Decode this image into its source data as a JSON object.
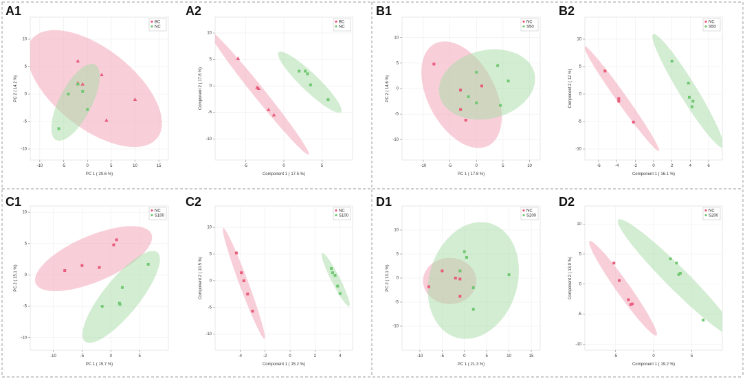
{
  "colors": {
    "nc": "#e85c7c",
    "ncFill": "#f2a0b4",
    "trt": "#72c872",
    "trtFill": "#a8dca8",
    "divider": "#999999"
  },
  "chart_data": [
    {
      "id": "A1",
      "letter": "A1",
      "type": "scatter",
      "xlabel": "PC 1 ( 20.6 %)",
      "ylabel": "PC 2 ( 14.2 %)",
      "xlim": [
        -12,
        17
      ],
      "ylim": [
        -12,
        14
      ],
      "xticks": [
        -10,
        -5,
        0,
        5,
        10,
        15
      ],
      "yticks": [
        -10,
        -5,
        0,
        5,
        10
      ],
      "series": [
        {
          "name": "BC",
          "color": "#e85c7c",
          "marker": "triangle",
          "points": [
            [
              -2,
              6
            ],
            [
              -2,
              2
            ],
            [
              3,
              3.5
            ],
            [
              4,
              -4.8
            ],
            [
              10,
              -1
            ],
            [
              -1,
              1.8
            ]
          ],
          "ellipse": {
            "cx": 1.5,
            "cy": 1,
            "rx": 16,
            "ry": 7.6,
            "angle": -32
          }
        },
        {
          "name": "NC",
          "color": "#72c872",
          "marker": "square",
          "points": [
            [
              -6,
              -6.3
            ],
            [
              -4,
              0
            ],
            [
              -1,
              0.5
            ],
            [
              0,
              -2.8
            ],
            [
              -2,
              1.8
            ]
          ],
          "ellipse": {
            "cx": -2.5,
            "cy": -1.5,
            "rx": 8,
            "ry": 3.3,
            "angle": 58
          }
        }
      ]
    },
    {
      "id": "A2",
      "letter": "A2",
      "type": "scatter",
      "xlabel": "Component 1 ( 17.5 %)",
      "ylabel": "Component 2 ( 17.8 %)",
      "xlim": [
        -9,
        9
      ],
      "ylim": [
        -14,
        13
      ],
      "xticks": [
        -5,
        0,
        5
      ],
      "yticks": [
        -10,
        -5,
        0,
        5,
        10
      ],
      "series": [
        {
          "name": "BC",
          "color": "#e85c7c",
          "marker": "triangle",
          "points": [
            [
              -6,
              5.2
            ],
            [
              -3.5,
              -0.3
            ],
            [
              -3.3,
              -0.5
            ],
            [
              -2,
              -4.5
            ],
            [
              -1.3,
              -5.5
            ]
          ],
          "ellipse": {
            "cx": -3.3,
            "cy": -1.2,
            "rx": 13.5,
            "ry": 0.85,
            "angle": -61
          }
        },
        {
          "name": "NC",
          "color": "#72c872",
          "marker": "square",
          "points": [
            [
              2,
              2.8
            ],
            [
              2.8,
              2.8
            ],
            [
              3.5,
              0.2
            ],
            [
              5.8,
              -2.6
            ],
            [
              3.1,
              2.3
            ]
          ],
          "ellipse": {
            "cx": 3.4,
            "cy": 0.7,
            "rx": 7,
            "ry": 1.35,
            "angle": -55
          }
        }
      ]
    },
    {
      "id": "B1",
      "letter": "B1",
      "type": "scatter",
      "xlabel": "PC 1 ( 17.8 %)",
      "ylabel": "PC 2 ( 14.6 %)",
      "xlim": [
        -14,
        12
      ],
      "ylim": [
        -14,
        14
      ],
      "xticks": [
        -10,
        -5,
        0,
        5,
        10
      ],
      "yticks": [
        -10,
        -5,
        0,
        5,
        10
      ],
      "series": [
        {
          "name": "NC",
          "color": "#e85c7c",
          "marker": "square",
          "points": [
            [
              -8,
              4.8
            ],
            [
              -3,
              -0.3
            ],
            [
              -3,
              -4.1
            ],
            [
              -2,
              -6.2
            ],
            [
              1,
              0.5
            ]
          ],
          "ellipse": {
            "cx": -2.8,
            "cy": -1.2,
            "rx": 11.2,
            "ry": 6.4,
            "angle": -64
          }
        },
        {
          "name": "S50",
          "color": "#72c872",
          "marker": "square",
          "points": [
            [
              0,
              3.2
            ],
            [
              -1.5,
              -1.6
            ],
            [
              4,
              4.5
            ],
            [
              6,
              1.5
            ],
            [
              4.5,
              -3.3
            ],
            [
              0,
              -2.8
            ]
          ],
          "ellipse": {
            "cx": 2,
            "cy": 0.8,
            "rx": 9.2,
            "ry": 6.7,
            "angle": 15
          }
        }
      ]
    },
    {
      "id": "B2",
      "letter": "B2",
      "type": "scatter",
      "xlabel": "Component 1 ( 16.1 %)",
      "ylabel": "Component 2 ( 12 %)",
      "xlim": [
        -7.5,
        7.5
      ],
      "ylim": [
        -12,
        14
      ],
      "xticks": [
        -6,
        -4,
        -2,
        0,
        2,
        4,
        6
      ],
      "yticks": [
        -10,
        -5,
        0,
        5,
        10
      ],
      "series": [
        {
          "name": "NC",
          "color": "#e85c7c",
          "marker": "square",
          "points": [
            [
              -5.3,
              4.2
            ],
            [
              -3.8,
              -0.8
            ],
            [
              -3.8,
              -1.3
            ],
            [
              -2.2,
              -5.1
            ]
          ],
          "ellipse": {
            "cx": -3.5,
            "cy": -0.8,
            "rx": 10.4,
            "ry": 0.62,
            "angle": -67
          }
        },
        {
          "name": "S50",
          "color": "#72c872",
          "marker": "square",
          "points": [
            [
              2,
              6
            ],
            [
              3.8,
              2
            ],
            [
              3.9,
              -0.6
            ],
            [
              4.3,
              -1.3
            ],
            [
              4.2,
              -2.3
            ]
          ],
          "ellipse": {
            "cx": 3.75,
            "cy": 0.6,
            "rx": 11,
            "ry": 1.05,
            "angle": -70
          }
        }
      ]
    },
    {
      "id": "C1",
      "letter": "C1",
      "type": "scatter",
      "xlabel": "PC 1 ( 15.7 %)",
      "ylabel": "PC 2 ( 15.1 %)",
      "xlim": [
        -14,
        10
      ],
      "ylim": [
        -12,
        11
      ],
      "xticks": [
        -10,
        -5,
        0,
        5
      ],
      "yticks": [
        -10,
        -5,
        0,
        5,
        10
      ],
      "series": [
        {
          "name": "NC",
          "color": "#e85c7c",
          "marker": "square",
          "points": [
            [
              -8,
              0.7
            ],
            [
              -5,
              1.5
            ],
            [
              -2,
              1.2
            ],
            [
              0.5,
              4.8
            ],
            [
              1,
              5.6
            ]
          ],
          "ellipse": {
            "cx": -3,
            "cy": 2.6,
            "rx": 10.8,
            "ry": 3.7,
            "angle": 21
          }
        },
        {
          "name": "S100",
          "color": "#72c872",
          "marker": "square",
          "points": [
            [
              -1.5,
              -5
            ],
            [
              1.5,
              -4.5
            ],
            [
              1.6,
              -4.7
            ],
            [
              2,
              -2
            ],
            [
              6.5,
              1.7
            ]
          ],
          "ellipse": {
            "cx": 1.8,
            "cy": -3.5,
            "rx": 9.5,
            "ry": 3,
            "angle": 48
          }
        }
      ]
    },
    {
      "id": "C2",
      "letter": "C2",
      "type": "scatter",
      "xlabel": "Component 1 ( 15.2 %)",
      "ylabel": "Component 2 ( 10.5 %)",
      "xlim": [
        -6,
        5
      ],
      "ylim": [
        -13,
        14
      ],
      "xticks": [
        -4,
        -2,
        0,
        2,
        4
      ],
      "yticks": [
        -10,
        -5,
        0,
        5,
        10
      ],
      "series": [
        {
          "name": "NC",
          "color": "#e85c7c",
          "marker": "square",
          "points": [
            [
              -4.3,
              5.2
            ],
            [
              -3.9,
              1.5
            ],
            [
              -3.7,
              0
            ],
            [
              -3.4,
              -2.5
            ],
            [
              -3,
              -5.7
            ]
          ],
          "ellipse": {
            "cx": -3.7,
            "cy": -0.5,
            "rx": 10.5,
            "ry": 0.38,
            "angle": -81
          }
        },
        {
          "name": "S100",
          "color": "#72c872",
          "marker": "square",
          "points": [
            [
              3.3,
              2.3
            ],
            [
              3.4,
              1.5
            ],
            [
              3.6,
              1
            ],
            [
              3.8,
              -1
            ],
            [
              4,
              -2.4
            ]
          ],
          "ellipse": {
            "cx": 3.65,
            "cy": 0.2,
            "rx": 5.1,
            "ry": 0.38,
            "angle": -78
          }
        }
      ]
    },
    {
      "id": "D1",
      "letter": "D1",
      "type": "scatter",
      "xlabel": "PC 1 ( 21.3 %)",
      "ylabel": "PC 2 ( 13.1 %)",
      "xlim": [
        -14,
        17
      ],
      "ylim": [
        -15,
        15
      ],
      "xticks": [
        -10,
        -5,
        0,
        5,
        10,
        15
      ],
      "yticks": [
        -10,
        -5,
        0,
        5,
        10
      ],
      "series": [
        {
          "name": "NC",
          "color": "#e85c7c",
          "marker": "square",
          "points": [
            [
              -8,
              -1.8
            ],
            [
              -5,
              1.5
            ],
            [
              -1,
              1.5
            ],
            [
              -1,
              -0.2
            ],
            [
              -1,
              -3.8
            ],
            [
              -2,
              0
            ]
          ],
          "ellipse": {
            "cx": -3.3,
            "cy": -0.6,
            "rx": 6,
            "ry": 4.8,
            "angle": 0
          }
        },
        {
          "name": "S200",
          "color": "#72c872",
          "marker": "square",
          "points": [
            [
              0,
              5.5
            ],
            [
              0.5,
              4.3
            ],
            [
              2,
              -2
            ],
            [
              2,
              -6.5
            ],
            [
              10,
              0.7
            ],
            [
              -1,
              1.5
            ]
          ],
          "ellipse": {
            "cx": 2,
            "cy": -0.5,
            "rx": 12.5,
            "ry": 9.8,
            "angle": 68
          }
        }
      ]
    },
    {
      "id": "D2",
      "letter": "D2",
      "type": "scatter",
      "xlabel": "Component 1 ( 19.2 %)",
      "ylabel": "Component 2 ( 13.9 %)",
      "xlim": [
        -9,
        9
      ],
      "ylim": [
        -11,
        13
      ],
      "xticks": [
        -5,
        0,
        5
      ],
      "yticks": [
        -10,
        -5,
        0,
        5,
        10
      ],
      "series": [
        {
          "name": "NC",
          "color": "#e85c7c",
          "marker": "square",
          "points": [
            [
              -5.2,
              3.5
            ],
            [
              -4.5,
              0.6
            ],
            [
              -3.3,
              -2.6
            ],
            [
              -3,
              -3.4
            ],
            [
              -2.8,
              -3.3
            ]
          ],
          "ellipse": {
            "cx": -4,
            "cy": -0.7,
            "rx": 9,
            "ry": 0.95,
            "angle": -61
          }
        },
        {
          "name": "S200",
          "color": "#72c872",
          "marker": "square",
          "points": [
            [
              2.2,
              4.2
            ],
            [
              3,
              3.5
            ],
            [
              3.3,
              1.6
            ],
            [
              3.5,
              1.8
            ],
            [
              6.5,
              -6
            ]
          ],
          "ellipse": {
            "cx": 3.1,
            "cy": 0.9,
            "rx": 12.5,
            "ry": 1.6,
            "angle": -52
          }
        }
      ]
    }
  ]
}
